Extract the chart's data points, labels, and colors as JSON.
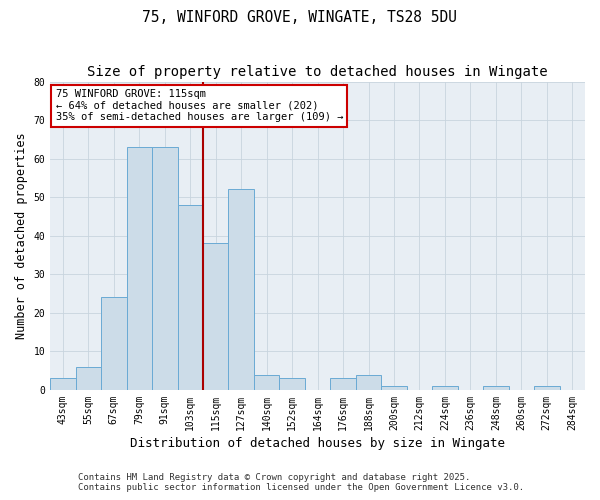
{
  "title": "75, WINFORD GROVE, WINGATE, TS28 5DU",
  "subtitle": "Size of property relative to detached houses in Wingate",
  "xlabel": "Distribution of detached houses by size in Wingate",
  "ylabel": "Number of detached properties",
  "bar_labels": [
    "43sqm",
    "55sqm",
    "67sqm",
    "79sqm",
    "91sqm",
    "103sqm",
    "115sqm",
    "127sqm",
    "140sqm",
    "152sqm",
    "164sqm",
    "176sqm",
    "188sqm",
    "200sqm",
    "212sqm",
    "224sqm",
    "236sqm",
    "248sqm",
    "260sqm",
    "272sqm",
    "284sqm"
  ],
  "bar_values": [
    3,
    6,
    24,
    63,
    63,
    48,
    38,
    52,
    4,
    3,
    0,
    3,
    4,
    1,
    0,
    1,
    0,
    1,
    0,
    1,
    0
  ],
  "bar_color": "#ccdce8",
  "bar_edge_color": "#6aaad4",
  "vline_x_index": 6,
  "vline_color": "#aa0000",
  "ylim": [
    0,
    80
  ],
  "yticks": [
    0,
    10,
    20,
    30,
    40,
    50,
    60,
    70,
    80
  ],
  "annotation_title": "75 WINFORD GROVE: 115sqm",
  "annotation_line1": "← 64% of detached houses are smaller (202)",
  "annotation_line2": "35% of semi-detached houses are larger (109) →",
  "annotation_box_facecolor": "#ffffff",
  "annotation_box_edgecolor": "#cc0000",
  "footer_line1": "Contains HM Land Registry data © Crown copyright and database right 2025.",
  "footer_line2": "Contains public sector information licensed under the Open Government Licence v3.0.",
  "background_color": "#ffffff",
  "plot_background_color": "#e8eef4",
  "grid_color": "#c8d4de",
  "title_fontsize": 10.5,
  "xlabel_fontsize": 9,
  "ylabel_fontsize": 8.5,
  "tick_fontsize": 7,
  "annotation_fontsize": 7.5,
  "footer_fontsize": 6.5
}
